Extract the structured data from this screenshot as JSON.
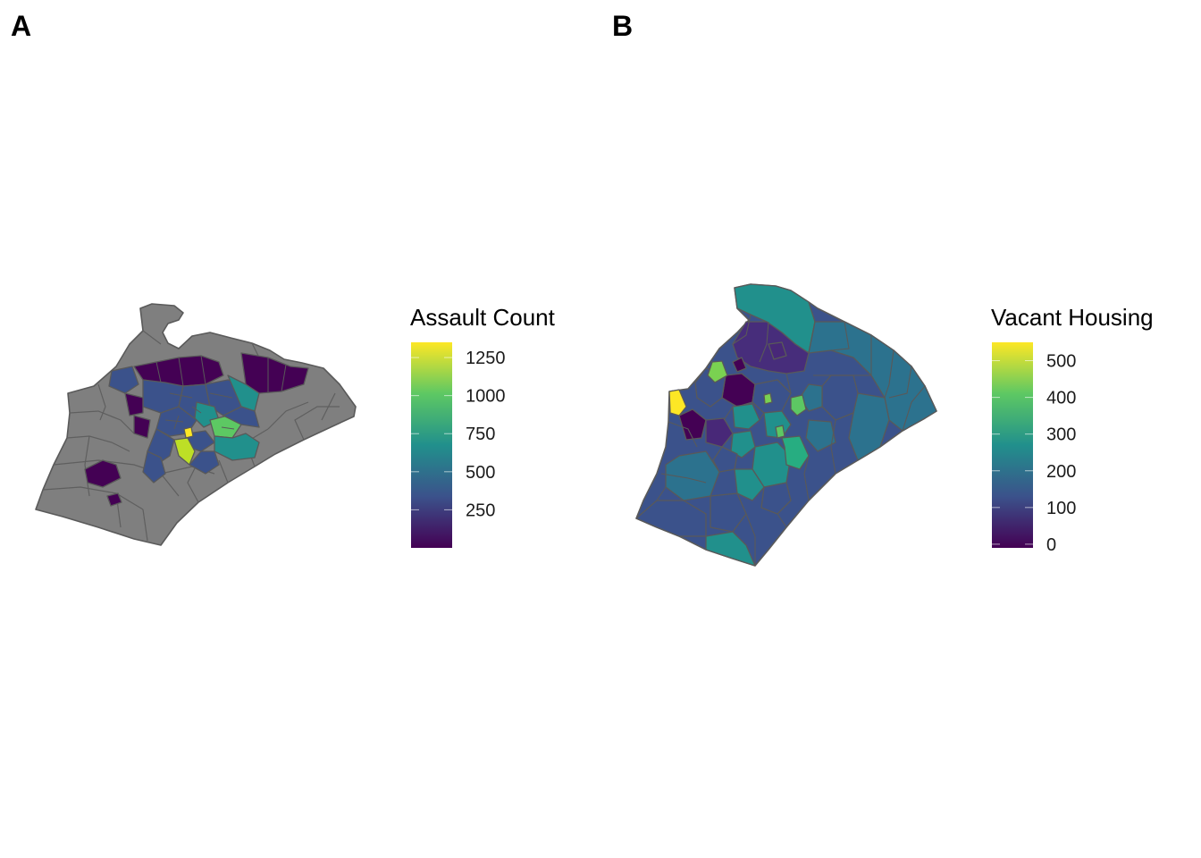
{
  "panels": [
    {
      "letter": "A",
      "legend": {
        "title": "Assault Count",
        "ticks": [
          250,
          500,
          750,
          1000,
          1250
        ],
        "min": 0,
        "max": 1350,
        "palette": [
          "#440154",
          "#3b528b",
          "#21908c",
          "#5dc863",
          "#fde725"
        ]
      },
      "na_color": "#7f7f7f"
    },
    {
      "letter": "B",
      "legend": {
        "title": "Vacant Housing",
        "ticks": [
          0,
          100,
          200,
          300,
          400,
          500
        ],
        "min": -10,
        "max": 550,
        "palette": [
          "#440154",
          "#3b528b",
          "#21908c",
          "#5dc863",
          "#fde725"
        ]
      }
    }
  ]
}
